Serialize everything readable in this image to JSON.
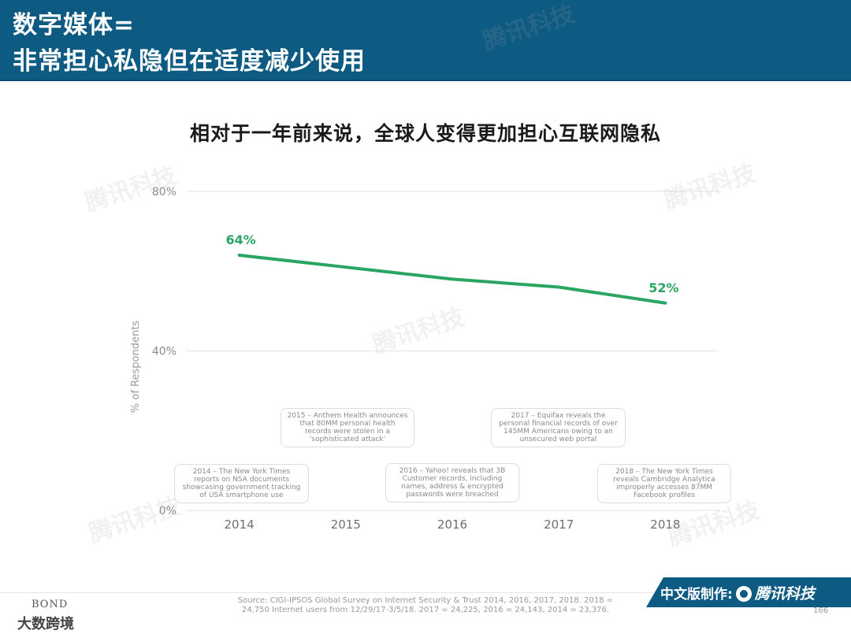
{
  "header": {
    "line1": "数字媒体=",
    "line2": "非常担心私隐但在适度减少使用"
  },
  "colors": {
    "header_bg": "#0d5a82",
    "line": "#2aa562"
  },
  "chart_data": {
    "type": "line",
    "title": "相对于一年前来说，全球人变得更加担心互联网隐私",
    "ylabel": "% of Respondents",
    "xlabel": "",
    "categories": [
      "2014",
      "2015",
      "2016",
      "2017",
      "2018"
    ],
    "x": [
      2014,
      2015,
      2016,
      2017,
      2018
    ],
    "series": [
      {
        "values": [
          64,
          61,
          58,
          56,
          52
        ]
      }
    ],
    "data_labels": [
      {
        "x": 2014,
        "text": "64%"
      },
      {
        "x": 2018,
        "text": "52%"
      }
    ],
    "yticks": [
      {
        "value": 80,
        "label": "80%"
      },
      {
        "value": 40,
        "label": "40%"
      },
      {
        "value": 0,
        "label": "0%"
      }
    ],
    "ylim": [
      0,
      80
    ],
    "xlim": [
      2013.5,
      2018.5
    ],
    "grid": true,
    "annotations": [
      {
        "year": "2014",
        "text": "2014 – The New York Times reports on NSA documents showcasing government tracking of USA smartphone use"
      },
      {
        "year": "2015",
        "text": "2015 – Anthem Health announces that 80MM personal health records were stolen in a 'sophisticated attack'"
      },
      {
        "year": "2016",
        "text": "2016 – Yahoo! reveals that 3B Customer records, including names, address & encrypted passwords were breached"
      },
      {
        "year": "2017",
        "text": "2017 – Equifax reveals the personal financial records of over 145MM Americans owing to an unsecured web portal"
      },
      {
        "year": "2018",
        "text": "2018 – The New York Times reveals Cambridge Analytica improperly accesses 87MM Facebook profiles"
      }
    ]
  },
  "footer": {
    "source": "Source: CIGI-IPSOS Global Survey on Internet Security & Trust 2014, 2016, 2017, 2018. 2018 = 24,750 Internet users from 12/29/17-3/5/18. 2017 = 24,225, 2016 = 24,143, 2014 = 23,376.",
    "page_number": "166",
    "bond_logo": "BOND",
    "credit_prefix": "中文版制作:",
    "credit_brand": "腾讯科技"
  },
  "watermarks": {
    "brand": "腾讯科技",
    "bottom_left": "大数跨境"
  }
}
